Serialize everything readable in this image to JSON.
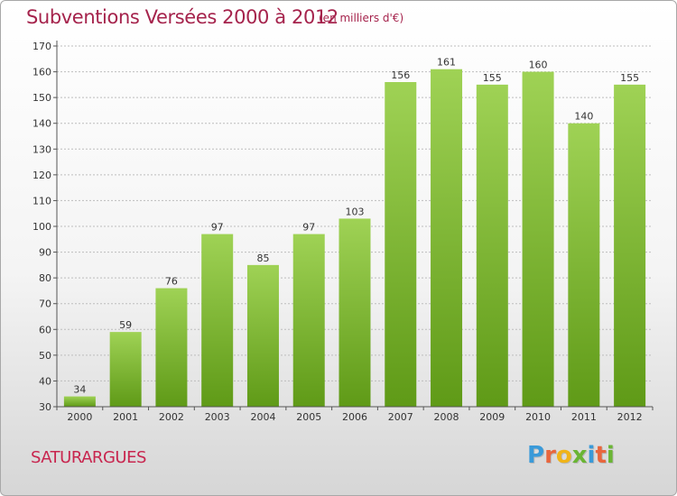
{
  "header": {
    "title": "Subventions Versées 2000 à 2012",
    "subtitle": "(en milliers d'€)"
  },
  "footer": {
    "commune": "SATURARGUES",
    "logo_letters": [
      {
        "ch": "P",
        "color": "#3a9ad9"
      },
      {
        "ch": "r",
        "color": "#e8663d"
      },
      {
        "ch": "o",
        "color": "#f0b419"
      },
      {
        "ch": "x",
        "color": "#6ab534"
      },
      {
        "ch": "i",
        "color": "#3a9ad9"
      },
      {
        "ch": "t",
        "color": "#e8663d"
      },
      {
        "ch": "i",
        "color": "#6ab534"
      }
    ]
  },
  "colors": {
    "accent": "#a5234c",
    "bar_light": "#9fd255",
    "bar_dark": "#5f9a17",
    "grid": "#bdbdbd"
  },
  "chart_data": {
    "type": "bar",
    "title": "Subventions Versées 2000 à 2012",
    "subtitle": "(en milliers d'€)",
    "categories": [
      "2000",
      "2001",
      "2002",
      "2003",
      "2004",
      "2005",
      "2006",
      "2007",
      "2008",
      "2009",
      "2010",
      "2011",
      "2012"
    ],
    "values": [
      34,
      59,
      76,
      97,
      85,
      97,
      103,
      156,
      161,
      155,
      160,
      140,
      155
    ],
    "ylim": [
      30,
      170
    ],
    "yticks": [
      30,
      40,
      50,
      60,
      70,
      80,
      90,
      100,
      110,
      120,
      130,
      140,
      150,
      160,
      170
    ],
    "grid": true,
    "data_labels": true
  }
}
